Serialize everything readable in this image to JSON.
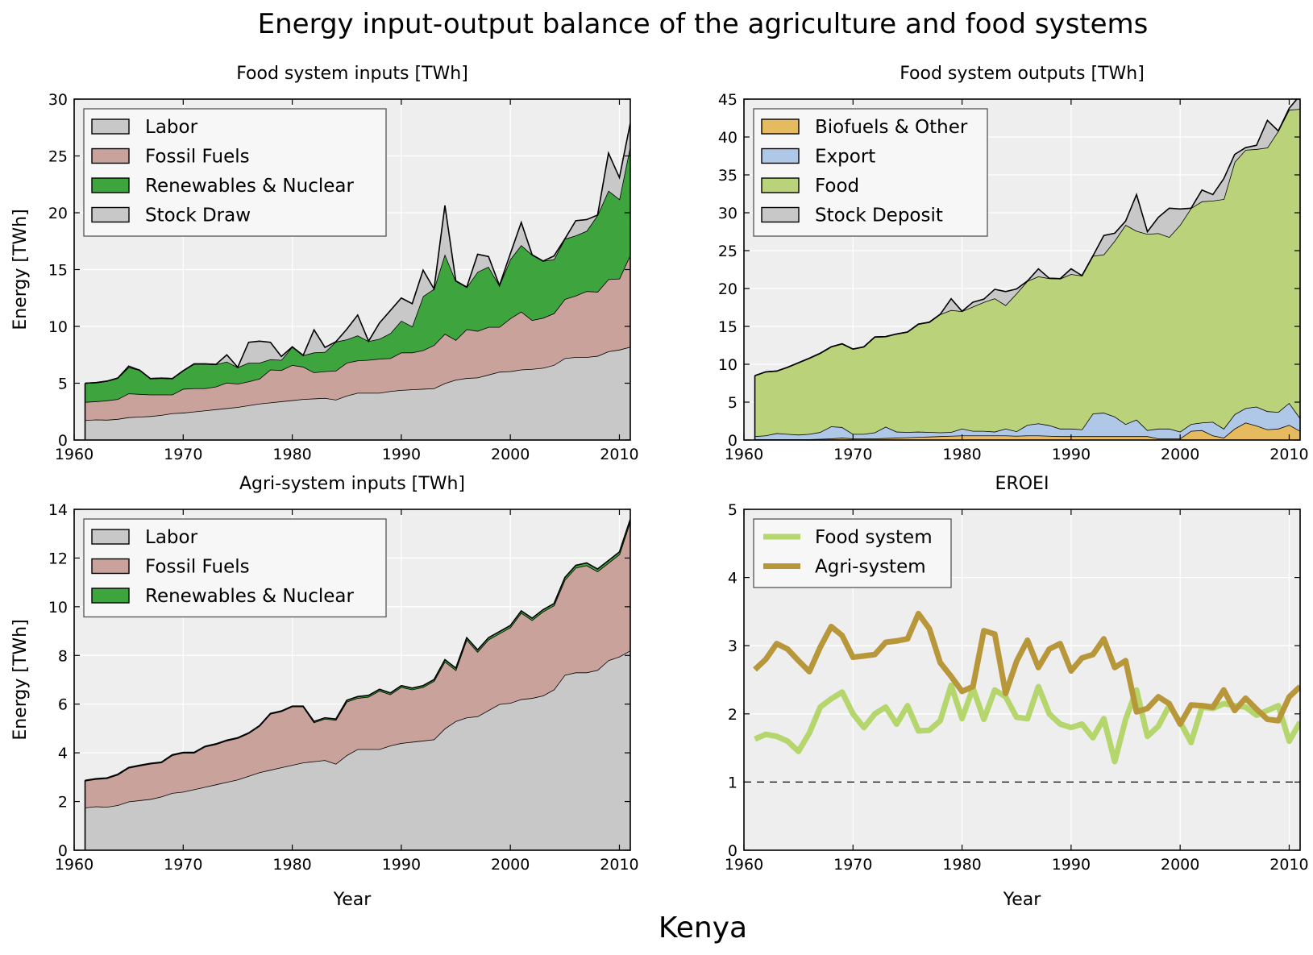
{
  "figure": {
    "title": "Energy input-output balance of the agriculture and food systems",
    "country": "Kenya"
  },
  "chart_data": [
    {
      "type": "area",
      "stacked": true,
      "title": "Food system inputs [TWh]",
      "xlabel": "",
      "ylabel": "Energy [TWh]",
      "xlim": [
        1960,
        2011
      ],
      "ylim": [
        0,
        30
      ],
      "xticks": [
        1960,
        1970,
        1980,
        1990,
        2000,
        2010
      ],
      "yticks": [
        0,
        5,
        10,
        15,
        20,
        25,
        30
      ],
      "grid": true,
      "legend_position": "top-left",
      "x": [
        1961,
        1962,
        1963,
        1964,
        1965,
        1966,
        1967,
        1968,
        1969,
        1970,
        1971,
        1972,
        1973,
        1974,
        1975,
        1976,
        1977,
        1978,
        1979,
        1980,
        1981,
        1982,
        1983,
        1984,
        1985,
        1986,
        1987,
        1988,
        1989,
        1990,
        1991,
        1992,
        1993,
        1994,
        1995,
        1996,
        1997,
        1998,
        1999,
        2000,
        2001,
        2002,
        2003,
        2004,
        2005,
        2006,
        2007,
        2008,
        2009,
        2010,
        2011
      ],
      "series": [
        {
          "name": "Labor",
          "color": "#c8c8c8",
          "values": [
            1.75,
            1.8,
            1.78,
            1.85,
            2.0,
            2.05,
            2.1,
            2.2,
            2.35,
            2.4,
            2.5,
            2.6,
            2.7,
            2.8,
            2.9,
            3.05,
            3.2,
            3.3,
            3.4,
            3.5,
            3.6,
            3.65,
            3.7,
            3.55,
            3.9,
            4.15,
            4.15,
            4.15,
            4.3,
            4.4,
            4.45,
            4.5,
            4.55,
            5.0,
            5.3,
            5.45,
            5.5,
            5.75,
            6.0,
            6.05,
            6.2,
            6.25,
            6.35,
            6.6,
            7.2,
            7.3,
            7.3,
            7.4,
            7.8,
            7.95,
            8.2
          ]
        },
        {
          "name": "Fossil Fuels",
          "color": "#c9a39b",
          "values": [
            1.6,
            1.6,
            1.7,
            1.75,
            2.1,
            2.0,
            1.9,
            1.8,
            1.65,
            2.1,
            2.05,
            1.95,
            2.0,
            2.25,
            2.05,
            2.1,
            2.2,
            2.9,
            2.75,
            3.1,
            2.85,
            2.3,
            2.35,
            2.55,
            2.9,
            2.85,
            2.9,
            3.0,
            2.9,
            3.3,
            3.25,
            3.4,
            3.8,
            4.35,
            3.5,
            4.3,
            4.1,
            4.2,
            3.95,
            4.65,
            5.1,
            4.3,
            4.4,
            4.55,
            5.2,
            5.4,
            5.8,
            5.65,
            6.35,
            6.25,
            8.1
          ]
        },
        {
          "name": "Renewables & Nuclear",
          "color": "#3ea43e",
          "values": [
            1.65,
            1.65,
            1.7,
            1.85,
            2.3,
            2.1,
            1.4,
            1.45,
            1.4,
            1.6,
            2.15,
            2.15,
            1.95,
            1.85,
            1.45,
            1.65,
            1.4,
            0.9,
            0.9,
            1.6,
            1.0,
            1.75,
            1.7,
            2.55,
            2.05,
            2.2,
            1.65,
            1.75,
            2.2,
            2.8,
            2.3,
            4.75,
            4.95,
            7.0,
            5.2,
            3.7,
            5.2,
            5.3,
            3.65,
            5.2,
            5.85,
            5.75,
            5.0,
            4.75,
            5.3,
            5.3,
            5.3,
            6.75,
            7.8,
            7.0,
            9.6
          ]
        },
        {
          "name": "Stock Draw",
          "color": "#c8c8c8",
          "values": [
            0,
            0,
            0,
            0,
            0.1,
            0,
            0,
            0,
            0,
            0,
            0,
            0,
            0,
            0.6,
            0,
            1.8,
            1.9,
            1.5,
            0.3,
            0,
            0,
            2.0,
            0.4,
            0,
            0.9,
            1.8,
            0,
            1.4,
            2.0,
            2.0,
            2.0,
            2.3,
            0,
            4.3,
            0,
            0,
            1.55,
            0.9,
            0,
            0.5,
            2.0,
            0,
            0,
            0.3,
            0,
            1.3,
            1.0,
            0,
            3.3,
            1.9,
            2.0
          ]
        }
      ]
    },
    {
      "type": "area",
      "stacked": true,
      "title": "Food system outputs [TWh]",
      "xlabel": "",
      "ylabel": "",
      "xlim": [
        1960,
        2011
      ],
      "ylim": [
        0,
        45
      ],
      "xticks": [
        1960,
        1970,
        1980,
        1990,
        2000,
        2010
      ],
      "yticks": [
        0,
        5,
        10,
        15,
        20,
        25,
        30,
        35,
        40,
        45
      ],
      "grid": true,
      "legend_position": "top-left",
      "x": [
        1961,
        1962,
        1963,
        1964,
        1965,
        1966,
        1967,
        1968,
        1969,
        1970,
        1971,
        1972,
        1973,
        1974,
        1975,
        1976,
        1977,
        1978,
        1979,
        1980,
        1981,
        1982,
        1983,
        1984,
        1985,
        1986,
        1987,
        1988,
        1989,
        1990,
        1991,
        1992,
        1993,
        1994,
        1995,
        1996,
        1997,
        1998,
        1999,
        2000,
        2001,
        2002,
        2003,
        2004,
        2005,
        2006,
        2007,
        2008,
        2009,
        2010,
        2011
      ],
      "series": [
        {
          "name": "Biofuels & Other",
          "color": "#e6bb5f",
          "values": [
            0.1,
            0.1,
            0.1,
            0.1,
            0.1,
            0.1,
            0.15,
            0.2,
            0.3,
            0.2,
            0.2,
            0.2,
            0.25,
            0.3,
            0.35,
            0.4,
            0.45,
            0.5,
            0.55,
            0.6,
            0.6,
            0.6,
            0.6,
            0.6,
            0.55,
            0.6,
            0.6,
            0.55,
            0.5,
            0.5,
            0.5,
            0.5,
            0.5,
            0.5,
            0.5,
            0.5,
            0.5,
            0.2,
            0.2,
            0.2,
            1.2,
            1.3,
            0.6,
            0.3,
            1.5,
            2.3,
            1.9,
            1.4,
            1.5,
            2.0,
            1.2
          ]
        },
        {
          "name": "Export",
          "color": "#b0c8e8",
          "values": [
            0.4,
            0.5,
            0.8,
            0.7,
            0.6,
            0.7,
            0.9,
            1.6,
            1.4,
            0.6,
            0.6,
            0.8,
            1.5,
            0.8,
            0.7,
            0.7,
            0.6,
            0.5,
            0.5,
            0.9,
            0.6,
            0.6,
            0.5,
            0.9,
            0.6,
            1.4,
            1.6,
            1.4,
            1.0,
            1.0,
            0.9,
            3.0,
            3.1,
            2.6,
            1.6,
            2.2,
            0.8,
            1.3,
            1.3,
            0.9,
            0.9,
            1.0,
            1.8,
            1.2,
            1.9,
            1.9,
            2.5,
            2.4,
            2.2,
            2.9,
            1.7
          ]
        },
        {
          "name": "Food",
          "color": "#bad27a",
          "values": [
            8.0,
            8.4,
            8.2,
            8.8,
            9.5,
            10.0,
            10.4,
            10.5,
            11.0,
            11.2,
            11.5,
            12.6,
            11.9,
            12.9,
            13.2,
            14.2,
            14.5,
            15.6,
            16.1,
            15.5,
            16.4,
            17.0,
            17.6,
            16.3,
            18.2,
            19.0,
            19.4,
            19.4,
            19.8,
            20.4,
            20.3,
            20.8,
            20.9,
            23.2,
            26.3,
            24.9,
            25.9,
            25.8,
            25.3,
            27.3,
            28.5,
            29.2,
            29.2,
            30.3,
            33.3,
            34.1,
            34.0,
            34.8,
            37.1,
            38.7,
            40.8
          ]
        },
        {
          "name": "Stock Deposit",
          "color": "#c8c8c8",
          "values": [
            0,
            0,
            0,
            0,
            0,
            0,
            0,
            0,
            0,
            0,
            0,
            0,
            0,
            0,
            0,
            0,
            0,
            0,
            1.5,
            0,
            0.6,
            0.4,
            1.2,
            1.8,
            0.6,
            0,
            1.0,
            0,
            0,
            0.7,
            0,
            0,
            2.5,
            1.0,
            0.5,
            4.8,
            0.3,
            2.1,
            3.8,
            2.1,
            0,
            1.5,
            0.8,
            2.7,
            1.0,
            0.3,
            0.5,
            3.6,
            0,
            0.2,
            1.8
          ]
        }
      ]
    },
    {
      "type": "area",
      "stacked": true,
      "title": "Agri-system inputs [TWh]",
      "xlabel": "Year",
      "ylabel": "Energy [TWh]",
      "xlim": [
        1960,
        2011
      ],
      "ylim": [
        0,
        14
      ],
      "xticks": [
        1960,
        1970,
        1980,
        1990,
        2000,
        2010
      ],
      "yticks": [
        0,
        2,
        4,
        6,
        8,
        10,
        12,
        14
      ],
      "grid": true,
      "legend_position": "top-left",
      "x": [
        1961,
        1962,
        1963,
        1964,
        1965,
        1966,
        1967,
        1968,
        1969,
        1970,
        1971,
        1972,
        1973,
        1974,
        1975,
        1976,
        1977,
        1978,
        1979,
        1980,
        1981,
        1982,
        1983,
        1984,
        1985,
        1986,
        1987,
        1988,
        1989,
        1990,
        1991,
        1992,
        1993,
        1994,
        1995,
        1996,
        1997,
        1998,
        1999,
        2000,
        2001,
        2002,
        2003,
        2004,
        2005,
        2006,
        2007,
        2008,
        2009,
        2010,
        2011
      ],
      "series": [
        {
          "name": "Labor",
          "color": "#c8c8c8",
          "values": [
            1.75,
            1.8,
            1.78,
            1.85,
            2.0,
            2.05,
            2.1,
            2.2,
            2.35,
            2.4,
            2.5,
            2.6,
            2.7,
            2.8,
            2.9,
            3.05,
            3.2,
            3.3,
            3.4,
            3.5,
            3.6,
            3.65,
            3.7,
            3.55,
            3.9,
            4.15,
            4.15,
            4.15,
            4.3,
            4.4,
            4.45,
            4.5,
            4.55,
            5.0,
            5.3,
            5.45,
            5.5,
            5.75,
            6.0,
            6.05,
            6.2,
            6.25,
            6.35,
            6.6,
            7.2,
            7.3,
            7.3,
            7.4,
            7.8,
            7.95,
            8.2
          ]
        },
        {
          "name": "Fossil Fuels",
          "color": "#c9a39b",
          "values": [
            1.1,
            1.12,
            1.17,
            1.25,
            1.38,
            1.42,
            1.45,
            1.4,
            1.55,
            1.6,
            1.5,
            1.65,
            1.65,
            1.7,
            1.7,
            1.75,
            1.9,
            2.3,
            2.3,
            2.4,
            2.3,
            1.6,
            1.7,
            1.8,
            2.2,
            2.1,
            2.15,
            2.4,
            2.1,
            2.3,
            2.15,
            2.2,
            2.4,
            2.75,
            2.1,
            3.2,
            2.65,
            2.9,
            2.9,
            3.1,
            3.55,
            3.2,
            3.45,
            3.45,
            3.9,
            4.3,
            4.4,
            4.05,
            4.0,
            4.2,
            5.3
          ]
        },
        {
          "name": "Renewables & Nuclear",
          "color": "#3ea43e",
          "values": [
            0.02,
            0.02,
            0.02,
            0.02,
            0.02,
            0.02,
            0.02,
            0.02,
            0.02,
            0.02,
            0.02,
            0.02,
            0.02,
            0.02,
            0.02,
            0.02,
            0.02,
            0.02,
            0.02,
            0.02,
            0.02,
            0.04,
            0.04,
            0.04,
            0.06,
            0.06,
            0.06,
            0.06,
            0.06,
            0.06,
            0.06,
            0.06,
            0.06,
            0.08,
            0.08,
            0.08,
            0.08,
            0.08,
            0.08,
            0.08,
            0.08,
            0.08,
            0.08,
            0.08,
            0.1,
            0.1,
            0.1,
            0.1,
            0.1,
            0.1,
            0.1
          ]
        }
      ]
    },
    {
      "type": "line",
      "title": "EROEI",
      "xlabel": "Year",
      "ylabel": "",
      "xlim": [
        1960,
        2011
      ],
      "ylim": [
        0,
        5
      ],
      "xticks": [
        1960,
        1970,
        1980,
        1990,
        2000,
        2010
      ],
      "yticks": [
        0,
        1,
        2,
        3,
        4,
        5
      ],
      "grid": true,
      "legend_position": "top-left",
      "reference_line": 1,
      "x": [
        1961,
        1962,
        1963,
        1964,
        1965,
        1966,
        1967,
        1968,
        1969,
        1970,
        1971,
        1972,
        1973,
        1974,
        1975,
        1976,
        1977,
        1978,
        1979,
        1980,
        1981,
        1982,
        1983,
        1984,
        1985,
        1986,
        1987,
        1988,
        1989,
        1990,
        1991,
        1992,
        1993,
        1994,
        1995,
        1996,
        1997,
        1998,
        1999,
        2000,
        2001,
        2002,
        2003,
        2004,
        2005,
        2006,
        2007,
        2008,
        2009,
        2010,
        2011
      ],
      "series": [
        {
          "name": "Food system",
          "color": "#b5d56d",
          "values": [
            1.63,
            1.7,
            1.67,
            1.6,
            1.45,
            1.72,
            2.1,
            2.22,
            2.32,
            2.0,
            1.8,
            2.0,
            2.1,
            1.85,
            2.12,
            1.75,
            1.76,
            1.9,
            2.42,
            1.93,
            2.38,
            1.92,
            2.35,
            2.25,
            1.95,
            1.93,
            2.4,
            2.0,
            1.85,
            1.8,
            1.85,
            1.65,
            1.93,
            1.3,
            1.92,
            2.35,
            1.67,
            1.82,
            2.12,
            1.88,
            1.58,
            2.1,
            2.08,
            2.15,
            2.12,
            2.1,
            1.98,
            2.05,
            2.12,
            1.6,
            1.88
          ]
        },
        {
          "name": "Agri-system",
          "color": "#b8963a",
          "values": [
            2.65,
            2.8,
            3.03,
            2.95,
            2.78,
            2.62,
            2.98,
            3.28,
            3.15,
            2.83,
            2.85,
            2.87,
            3.05,
            3.07,
            3.1,
            3.47,
            3.25,
            2.75,
            2.55,
            2.33,
            2.4,
            3.22,
            3.17,
            2.3,
            2.77,
            3.08,
            2.68,
            2.95,
            3.03,
            2.63,
            2.82,
            2.87,
            3.1,
            2.68,
            2.78,
            2.03,
            2.08,
            2.25,
            2.15,
            1.85,
            2.13,
            2.12,
            2.1,
            2.35,
            2.05,
            2.23,
            2.07,
            1.92,
            1.9,
            2.25,
            2.4
          ]
        }
      ]
    }
  ]
}
